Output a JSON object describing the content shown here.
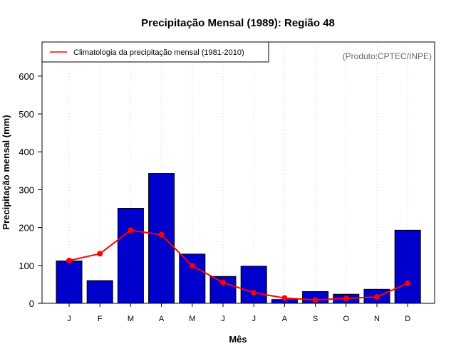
{
  "chart_data": {
    "type": "bar",
    "title": "Precipitação Mensal (1989): Região 48",
    "xlabel": "Mês",
    "ylabel": "Precipitação mensal (mm)",
    "categories": [
      "J",
      "F",
      "M",
      "A",
      "M",
      "J",
      "J",
      "A",
      "S",
      "O",
      "N",
      "D"
    ],
    "ylim": [
      0,
      690
    ],
    "yticks": [
      0,
      100,
      200,
      300,
      400,
      500,
      600
    ],
    "grid": "vertical-dotted",
    "series": [
      {
        "name": "Precipitação mensal (1989)",
        "kind": "bar",
        "color": "#0000cc",
        "values": [
          112,
          60,
          251,
          343,
          130,
          71,
          98,
          10,
          31,
          24,
          37,
          193
        ]
      },
      {
        "name": "Climatologia da precipitação mensal (1981-2010)",
        "kind": "line",
        "color": "#ff0000",
        "values": [
          113,
          131,
          193,
          181,
          99,
          55,
          28,
          14,
          9,
          13,
          17,
          53
        ]
      }
    ],
    "legend": {
      "position": "top-left",
      "entries": [
        "Climatologia da precipitação mensal (1981-2010)"
      ]
    },
    "annotation": "(Produto:CPTEC/INPE)"
  }
}
